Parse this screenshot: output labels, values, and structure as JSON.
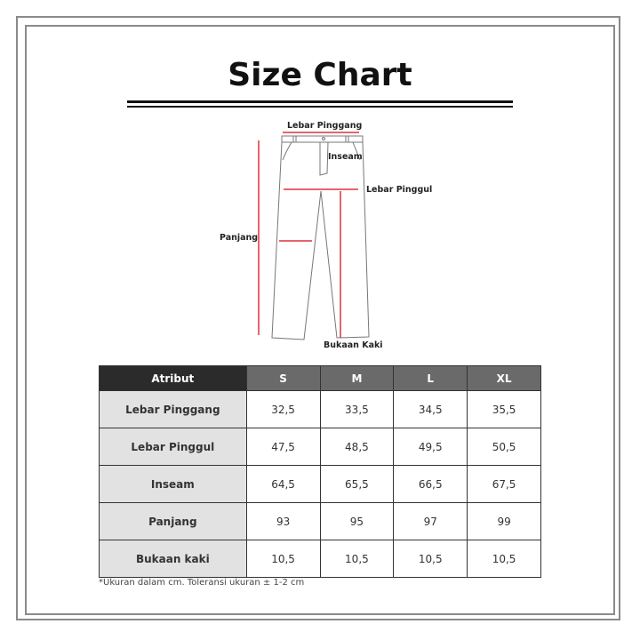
{
  "title": "Size Chart",
  "diagram": {
    "waist": "Lebar Pinggang",
    "inseam": "Inseam",
    "hip": "Lebar Pinggul",
    "length": "Panjang",
    "leg_opening": "Bukaan Kaki"
  },
  "accent_color": "#e0303c",
  "table": {
    "headers": [
      "Atribut",
      "S",
      "M",
      "L",
      "XL"
    ],
    "rows": [
      {
        "label": "Lebar Pinggang",
        "values": [
          "32,5",
          "33,5",
          "34,5",
          "35,5"
        ]
      },
      {
        "label": "Lebar Pinggul",
        "values": [
          "47,5",
          "48,5",
          "49,5",
          "50,5"
        ]
      },
      {
        "label": "Inseam",
        "values": [
          "64,5",
          "65,5",
          "66,5",
          "67,5"
        ]
      },
      {
        "label": "Panjang",
        "values": [
          "93",
          "95",
          "97",
          "99"
        ]
      },
      {
        "label": "Bukaan kaki",
        "values": [
          "10,5",
          "10,5",
          "10,5",
          "10,5"
        ]
      }
    ]
  },
  "note": "*Ukuran dalam cm. Toleransi ukuran ± 1-2 cm"
}
